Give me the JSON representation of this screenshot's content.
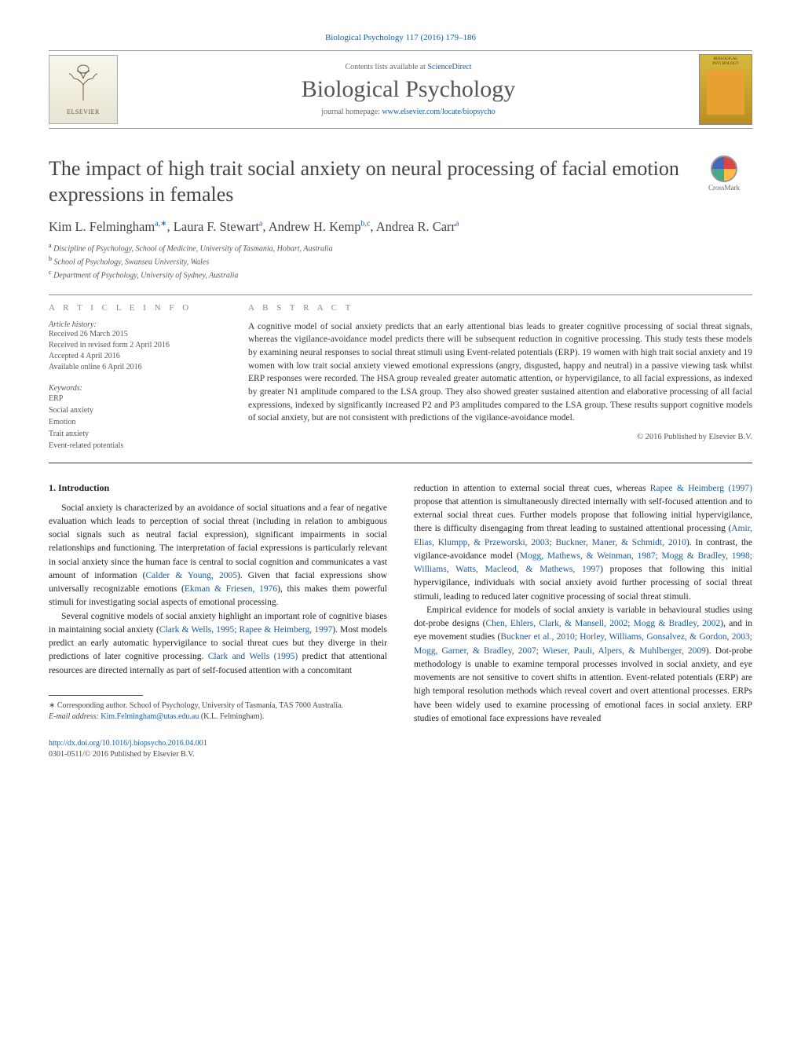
{
  "journal_ref": "Biological Psychology 117 (2016) 179–186",
  "header": {
    "contents_pre": "Contents lists available at ",
    "contents_link": "ScienceDirect",
    "journal_title": "Biological Psychology",
    "homepage_pre": "journal homepage: ",
    "homepage_url": "www.elsevier.com/locate/biopsycho",
    "elsevier_label": "ELSEVIER",
    "cover_label": "BIOLOGICAL PSYCHOLOGY"
  },
  "crossmark_label": "CrossMark",
  "article_title": "The impact of high trait social anxiety on neural processing of facial emotion expressions in females",
  "authors_html_parts": [
    {
      "t": "Kim L. Felmingham"
    },
    {
      "s": "a,"
    },
    {
      "s": "∗"
    },
    {
      "t": ", Laura F. Stewart"
    },
    {
      "s": "a"
    },
    {
      "t": ", Andrew H. Kemp"
    },
    {
      "s": "b,c"
    },
    {
      "t": ", Andrea R. Carr"
    },
    {
      "s": "a"
    }
  ],
  "affiliations": [
    {
      "sup": "a",
      "text": "Discipline of Psychology, School of Medicine, University of Tasmania, Hobart, Australia"
    },
    {
      "sup": "b",
      "text": "School of Psychology, Swansea University, Wales"
    },
    {
      "sup": "c",
      "text": "Department of Psychology, University of Sydney, Australia"
    }
  ],
  "article_info_hd": "a r t i c l e   i n f o",
  "abstract_hd": "a b s t r a c t",
  "history_label": "Article history:",
  "history": [
    "Received 26 March 2015",
    "Received in revised form 2 April 2016",
    "Accepted 4 April 2016",
    "Available online 6 April 2016"
  ],
  "keywords_label": "Keywords:",
  "keywords": [
    "ERP",
    "Social anxiety",
    "Emotion",
    "Trait anxiety",
    "Event-related potentials"
  ],
  "abstract": "A cognitive model of social anxiety predicts that an early attentional bias leads to greater cognitive processing of social threat signals, whereas the vigilance-avoidance model predicts there will be subsequent reduction in cognitive processing. This study tests these models by examining neural responses to social threat stimuli using Event-related potentials (ERP). 19 women with high trait social anxiety and 19 women with low trait social anxiety viewed emotional expressions (angry, disgusted, happy and neutral) in a passive viewing task whilst ERP responses were recorded. The HSA group revealed greater automatic attention, or hypervigilance, to all facial expressions, as indexed by greater N1 amplitude compared to the LSA group. They also showed greater sustained attention and elaborative processing of all facial expressions, indexed by significantly increased P2 and P3 amplitudes compared to the LSA group. These results support cognitive models of social anxiety, but are not consistent with predictions of the vigilance-avoidance model.",
  "copyright": "© 2016 Published by Elsevier B.V.",
  "intro_hd": "1. Introduction",
  "col1": {
    "p1_pre": "Social anxiety is characterized by an avoidance of social situations and a fear of negative evaluation which leads to perception of social threat (including in relation to ambiguous social signals such as neutral facial expression), significant impairments in social relationships and functioning. The interpretation of facial expressions is particularly relevant in social anxiety since the human face is central to social cognition and communicates a vast amount of information (",
    "p1_c1": "Calder & Young, 2005",
    "p1_mid1": "). Given that facial expressions show universally recognizable emotions (",
    "p1_c2": "Ekman & Friesen, 1976",
    "p1_post": "), this makes them powerful stimuli for investigating social aspects of emotional processing.",
    "p2_pre": "Several cognitive models of social anxiety highlight an important role of cognitive biases in maintaining social anxiety (",
    "p2_c1": "Clark & Wells, 1995; Rapee & Heimberg, 1997",
    "p2_mid": "). Most models predict an early automatic hypervigilance to social threat cues but they diverge in their predictions of later cognitive processing. ",
    "p2_c2": "Clark and Wells (1995)",
    "p2_post": " predict that attentional resources are directed internally as part of self-focused attention with a concomitant"
  },
  "col2": {
    "p1_pre": "reduction in attention to external social threat cues, whereas ",
    "p1_c1": "Rapee & Heimberg (1997)",
    "p1_mid1": " propose that attention is simultaneously directed internally with self-focused attention and to external social threat cues. Further models propose that following initial hypervigilance, there is difficulty disengaging from threat leading to sustained attentional processing (",
    "p1_c2": "Amir, Elias, Klumpp, & Przeworski, 2003; Buckner, Maner, & Schmidt, 2010",
    "p1_mid2": "). In contrast, the vigilance-avoidance model (",
    "p1_c3": "Mogg, Mathews, & Weinman, 1987; Mogg & Bradley, 1998; Williams, Watts, Macleod, & Mathews, 1997",
    "p1_post": ") proposes that following this initial hypervigilance, individuals with social anxiety avoid further processing of social threat stimuli, leading to reduced later cognitive processing of social threat stimuli.",
    "p2_pre": "Empirical evidence for models of social anxiety is variable in behavioural studies using dot-probe designs (",
    "p2_c1": "Chen, Ehlers, Clark, & Mansell, 2002; Mogg & Bradley, 2002",
    "p2_mid1": "), and in eye movement studies (",
    "p2_c2": "Buckner et al., 2010; Horley, Williams, Gonsalvez, & Gordon, 2003; Mogg, Garner, & Bradley, 2007; Wieser, Pauli, Alpers, & Muhlberger, 2009",
    "p2_post": "). Dot-probe methodology is unable to examine temporal processes involved in social anxiety, and eye movements are not sensitive to covert shifts in attention. Event-related potentials (ERP) are high temporal resolution methods which reveal covert and overt attentional processes. ERPs have been widely used to examine processing of emotional faces in social anxiety. ERP studies of emotional face expressions have revealed"
  },
  "footnote": {
    "corresp_pre": "∗ Corresponding author. School of Psychology, University of Tasmania, TAS 7000 Australia.",
    "email_label": "E-mail address: ",
    "email": "Kim.Felmingham@utas.edu.au",
    "email_post": " (K.L. Felmingham)."
  },
  "doi": {
    "link": "http://dx.doi.org/10.1016/j.biopsycho.2016.04.001",
    "issn": "0301-0511/© 2016 Published by Elsevier B.V."
  },
  "colors": {
    "link": "#1a5a9e",
    "text": "#333333",
    "muted": "#888888"
  }
}
